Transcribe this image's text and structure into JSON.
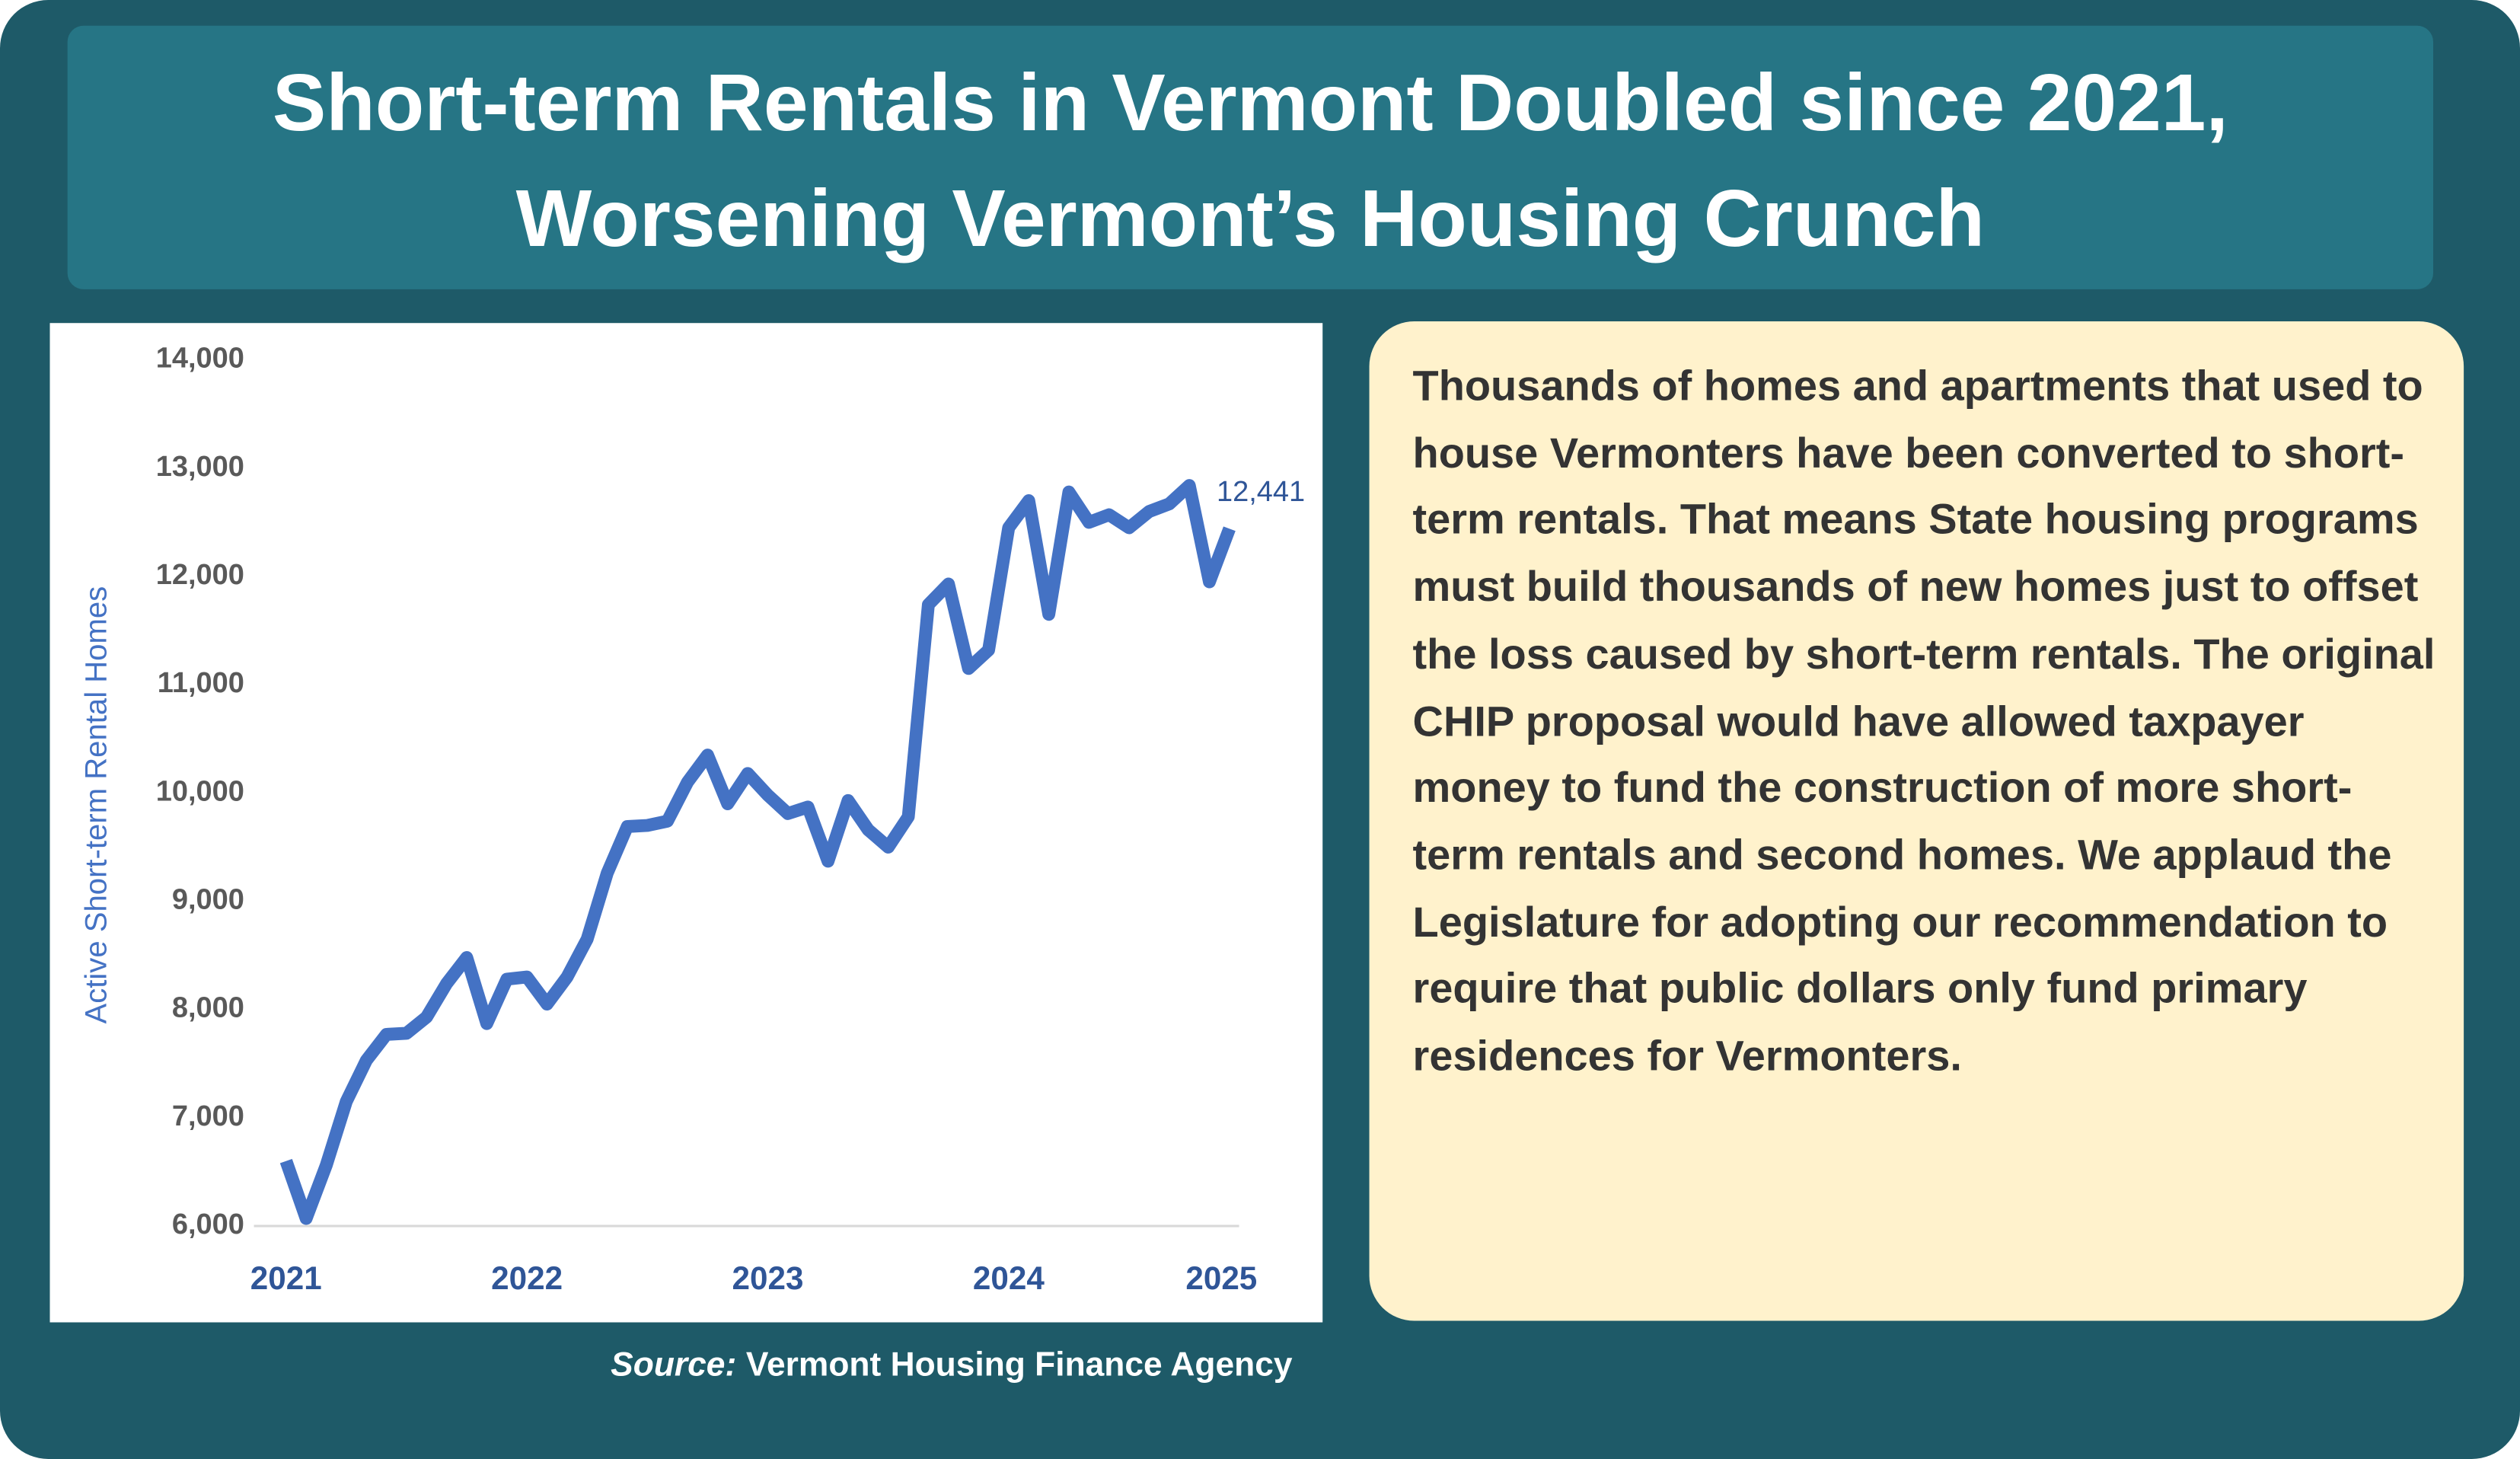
{
  "title_lines": [
    "Short-term Rentals in Vermont Doubled since 2021,",
    "Worsening Vermont’s Housing Crunch"
  ],
  "chart_data": {
    "type": "line",
    "ylabel": "Active Short-term Rental Homes",
    "color": "#4472c4",
    "categories": [
      "2021",
      null,
      null,
      null,
      null,
      null,
      null,
      null,
      null,
      null,
      null,
      null,
      "2022",
      null,
      null,
      null,
      null,
      null,
      null,
      null,
      null,
      null,
      null,
      null,
      "2023",
      null,
      null,
      null,
      null,
      null,
      null,
      null,
      null,
      null,
      null,
      null,
      "2024",
      null,
      null,
      null,
      null,
      null,
      null,
      null,
      null,
      null,
      null,
      "2025"
    ],
    "values": [
      6600,
      6070,
      6560,
      7150,
      7530,
      7770,
      7780,
      7930,
      8240,
      8480,
      7870,
      8280,
      8300,
      8050,
      8300,
      8650,
      9260,
      9690,
      9700,
      9740,
      10100,
      10350,
      9900,
      10180,
      9980,
      9810,
      9870,
      9370,
      9930,
      9660,
      9500,
      9780,
      11740,
      11930,
      11150,
      11320,
      12450,
      12700,
      11650,
      12780,
      12500,
      12570,
      12450,
      12600,
      12670,
      12840,
      11950,
      12441
    ],
    "value_labels": [
      null,
      null,
      null,
      null,
      null,
      null,
      null,
      null,
      null,
      null,
      null,
      null,
      null,
      null,
      null,
      null,
      null,
      null,
      null,
      null,
      null,
      null,
      null,
      null,
      null,
      null,
      null,
      null,
      null,
      null,
      null,
      null,
      null,
      null,
      null,
      null,
      null,
      null,
      null,
      null,
      null,
      null,
      null,
      null,
      null,
      null,
      null,
      "12,441"
    ],
    "ylim": [
      6000,
      14000
    ],
    "yticks": [
      {
        "value": 6000,
        "label": "6,000"
      },
      {
        "value": 7000,
        "label": "7,000"
      },
      {
        "value": 8000,
        "label": "8,000"
      },
      {
        "value": 9000,
        "label": "9,000"
      },
      {
        "value": 10000,
        "label": "10,000"
      },
      {
        "value": 11000,
        "label": "11,000"
      },
      {
        "value": 12000,
        "label": "12,000"
      },
      {
        "value": 13000,
        "label": "13,000"
      },
      {
        "value": 14000,
        "label": "14,000"
      }
    ]
  },
  "source": {
    "label": "Source:",
    "text": "Vermont Housing Finance Agency"
  },
  "body": "Thousands of homes and apartments that used to house Vermonters have been converted to short-term rentals. That means State housing programs must build thousands of new homes just to offset the loss caused by short-term rentals. The original CHIP proposal would have allowed taxpayer money to fund the construction of more short-term rentals and second homes. We applaud the Legislature for adopting our recommendation to require that public dollars only fund primary residences for Vermonters."
}
